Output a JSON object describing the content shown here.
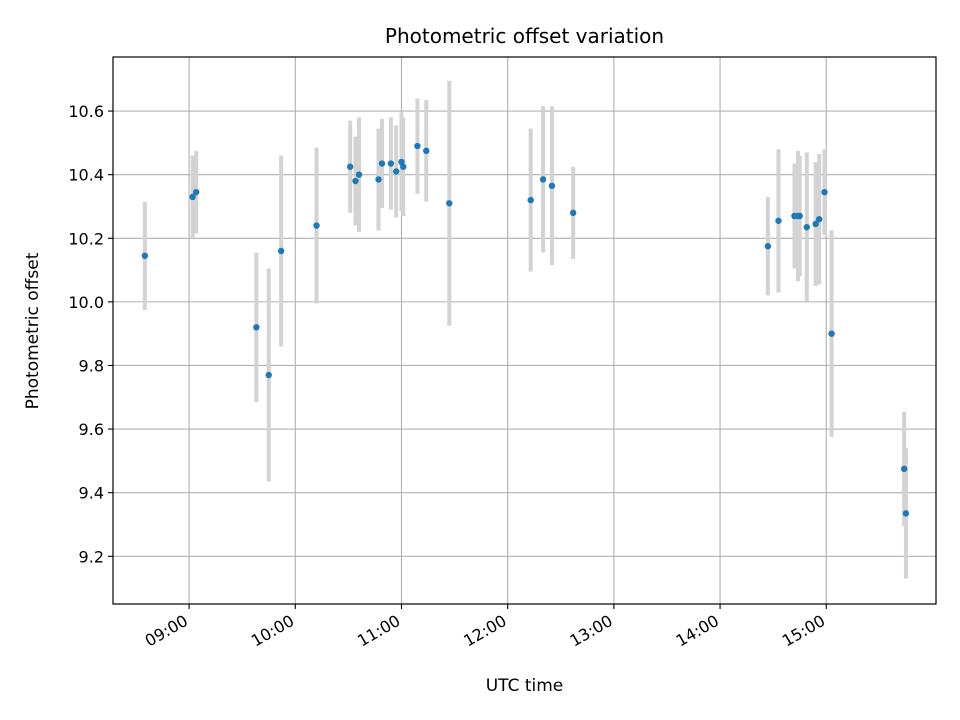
{
  "chart_data": {
    "type": "scatter",
    "title": "Photometric offset variation",
    "xlabel": "UTC time",
    "ylabel": "Photometric offset",
    "x_tick_labels": [
      "09:00",
      "10:00",
      "11:00",
      "12:00",
      "13:00",
      "14:00",
      "15:00"
    ],
    "y_tick_labels": [
      "9.2",
      "9.4",
      "9.6",
      "9.8",
      "10.0",
      "10.2",
      "10.4",
      "10.6"
    ],
    "xlim": [
      "08:17",
      "16:02"
    ],
    "ylim": [
      9.05,
      10.77
    ],
    "grid": true,
    "error_bar_color": "#d3d3d3",
    "point_color": "#1f77b4",
    "points": [
      {
        "t": "08:35",
        "y": 10.145,
        "err": 0.17
      },
      {
        "t": "09:02",
        "y": 10.33,
        "err": 0.13
      },
      {
        "t": "09:04",
        "y": 10.345,
        "err": 0.13
      },
      {
        "t": "09:38",
        "y": 9.92,
        "err": 0.235
      },
      {
        "t": "09:45",
        "y": 9.77,
        "err": 0.335
      },
      {
        "t": "09:52",
        "y": 10.16,
        "err": 0.3
      },
      {
        "t": "10:12",
        "y": 10.24,
        "err": 0.245
      },
      {
        "t": "10:31",
        "y": 10.425,
        "err": 0.145
      },
      {
        "t": "10:34",
        "y": 10.38,
        "err": 0.14
      },
      {
        "t": "10:36",
        "y": 10.4,
        "err": 0.18
      },
      {
        "t": "10:47",
        "y": 10.385,
        "err": 0.16
      },
      {
        "t": "10:49",
        "y": 10.435,
        "err": 0.14
      },
      {
        "t": "10:54",
        "y": 10.435,
        "err": 0.145
      },
      {
        "t": "10:57",
        "y": 10.41,
        "err": 0.145
      },
      {
        "t": "11:00",
        "y": 10.44,
        "err": 0.155
      },
      {
        "t": "11:01",
        "y": 10.425,
        "err": 0.155
      },
      {
        "t": "11:09",
        "y": 10.49,
        "err": 0.15
      },
      {
        "t": "11:14",
        "y": 10.475,
        "err": 0.16
      },
      {
        "t": "11:27",
        "y": 10.31,
        "err": 0.385
      },
      {
        "t": "12:13",
        "y": 10.32,
        "err": 0.225
      },
      {
        "t": "12:20",
        "y": 10.385,
        "err": 0.23
      },
      {
        "t": "12:25",
        "y": 10.365,
        "err": 0.25
      },
      {
        "t": "12:37",
        "y": 10.28,
        "err": 0.145
      },
      {
        "t": "14:27",
        "y": 10.175,
        "err": 0.155
      },
      {
        "t": "14:33",
        "y": 10.255,
        "err": 0.225
      },
      {
        "t": "14:42",
        "y": 10.27,
        "err": 0.165
      },
      {
        "t": "14:44",
        "y": 10.27,
        "err": 0.205
      },
      {
        "t": "14:45",
        "y": 10.27,
        "err": 0.19
      },
      {
        "t": "14:49",
        "y": 10.235,
        "err": 0.235
      },
      {
        "t": "14:54",
        "y": 10.245,
        "err": 0.195
      },
      {
        "t": "14:56",
        "y": 10.26,
        "err": 0.205
      },
      {
        "t": "14:59",
        "y": 10.345,
        "err": 0.135
      },
      {
        "t": "15:03",
        "y": 9.9,
        "err": 0.325
      },
      {
        "t": "15:44",
        "y": 9.475,
        "err": 0.18
      },
      {
        "t": "15:45",
        "y": 9.335,
        "err": 0.205
      }
    ]
  }
}
